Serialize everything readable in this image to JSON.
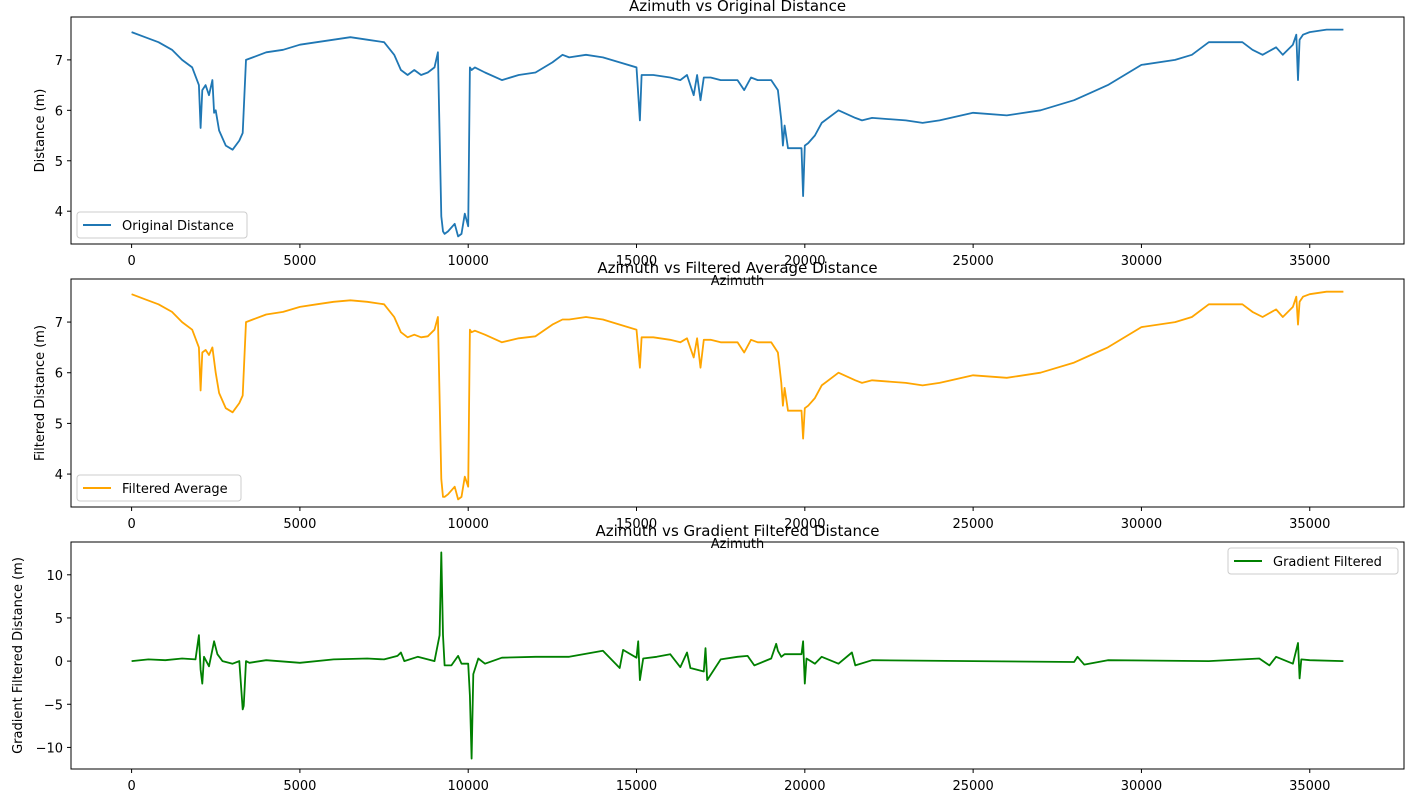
{
  "chart_data": [
    {
      "type": "line",
      "title": "Azimuth vs Original Distance",
      "xlabel": "Azimuth",
      "ylabel": "Distance (m)",
      "xlim": [
        -1800,
        37800
      ],
      "ylim": [
        3.35,
        7.85
      ],
      "xticks": [
        0,
        5000,
        10000,
        15000,
        20000,
        25000,
        30000,
        35000
      ],
      "yticks": [
        4,
        5,
        6,
        7
      ],
      "legend_position": "lower-left",
      "grid": false,
      "series": [
        {
          "name": "Original Distance",
          "color": "#1f77b4",
          "x": [
            0,
            400,
            800,
            1200,
            1500,
            1800,
            2000,
            2050,
            2100,
            2200,
            2300,
            2400,
            2450,
            2500,
            2600,
            2800,
            3000,
            3200,
            3300,
            3350,
            3400,
            3600,
            4000,
            4500,
            5000,
            5500,
            6000,
            6500,
            7000,
            7500,
            7800,
            8000,
            8200,
            8400,
            8600,
            8800,
            9000,
            9100,
            9200,
            9250,
            9300,
            9400,
            9600,
            9700,
            9800,
            9900,
            10000,
            10050,
            10100,
            10200,
            10500,
            11000,
            11500,
            12000,
            12500,
            12800,
            13000,
            13500,
            14000,
            14500,
            15000,
            15100,
            15150,
            15200,
            15500,
            16000,
            16300,
            16500,
            16700,
            16800,
            16900,
            17000,
            17200,
            17500,
            18000,
            18200,
            18400,
            18600,
            19000,
            19200,
            19300,
            19350,
            19400,
            19500,
            19700,
            19900,
            19950,
            20000,
            20100,
            20300,
            20500,
            21000,
            21500,
            21700,
            22000,
            23000,
            23500,
            24000,
            25000,
            26000,
            27000,
            28000,
            28500,
            29000,
            30000,
            31000,
            31500,
            32000,
            33000,
            33300,
            33600,
            34000,
            34200,
            34500,
            34600,
            34650,
            34700,
            34800,
            35000,
            35500,
            36000
          ],
          "y": [
            7.55,
            7.45,
            7.35,
            7.2,
            7.0,
            6.85,
            6.5,
            5.65,
            6.4,
            6.5,
            6.3,
            6.6,
            5.95,
            6.0,
            5.6,
            5.3,
            5.22,
            5.4,
            5.55,
            6.3,
            7.0,
            7.05,
            7.15,
            7.2,
            7.3,
            7.35,
            7.4,
            7.45,
            7.4,
            7.35,
            7.1,
            6.8,
            6.7,
            6.8,
            6.7,
            6.75,
            6.85,
            7.15,
            3.9,
            3.6,
            3.55,
            3.6,
            3.75,
            3.5,
            3.55,
            3.95,
            3.7,
            6.85,
            6.8,
            6.85,
            6.75,
            6.6,
            6.7,
            6.75,
            6.95,
            7.1,
            7.05,
            7.1,
            7.05,
            6.95,
            6.85,
            5.8,
            6.7,
            6.7,
            6.7,
            6.65,
            6.6,
            6.7,
            6.3,
            6.7,
            6.2,
            6.65,
            6.65,
            6.6,
            6.6,
            6.4,
            6.65,
            6.6,
            6.6,
            6.4,
            5.8,
            5.3,
            5.7,
            5.25,
            5.25,
            5.25,
            4.3,
            5.3,
            5.35,
            5.5,
            5.75,
            6.0,
            5.85,
            5.8,
            5.85,
            5.8,
            5.75,
            5.8,
            5.95,
            5.9,
            6.0,
            6.2,
            6.35,
            6.5,
            6.9,
            7.0,
            7.1,
            7.35,
            7.35,
            7.2,
            7.1,
            7.25,
            7.1,
            7.3,
            7.5,
            6.6,
            7.4,
            7.5,
            7.55,
            7.6,
            7.6
          ]
        }
      ]
    },
    {
      "type": "line",
      "title": "Azimuth vs Filtered Average Distance",
      "xlabel": "Azimuth",
      "ylabel": "Filtered Distance (m)",
      "xlim": [
        -1800,
        37800
      ],
      "ylim": [
        3.35,
        7.85
      ],
      "xticks": [
        0,
        5000,
        10000,
        15000,
        20000,
        25000,
        30000,
        35000
      ],
      "yticks": [
        4,
        5,
        6,
        7
      ],
      "legend_position": "lower-left",
      "grid": false,
      "series": [
        {
          "name": "Filtered Average",
          "color": "#ffa500",
          "x": [
            0,
            400,
            800,
            1200,
            1500,
            1800,
            2000,
            2050,
            2100,
            2200,
            2300,
            2400,
            2500,
            2600,
            2800,
            3000,
            3200,
            3300,
            3350,
            3400,
            3600,
            4000,
            4500,
            5000,
            5500,
            6000,
            6500,
            7000,
            7500,
            7800,
            8000,
            8200,
            8400,
            8600,
            8800,
            9000,
            9100,
            9200,
            9250,
            9300,
            9400,
            9600,
            9700,
            9800,
            9900,
            10000,
            10050,
            10100,
            10200,
            10500,
            11000,
            11500,
            12000,
            12500,
            12800,
            13000,
            13500,
            14000,
            14500,
            15000,
            15100,
            15150,
            15200,
            15500,
            16000,
            16300,
            16500,
            16700,
            16800,
            16900,
            17000,
            17200,
            17500,
            18000,
            18200,
            18400,
            18600,
            19000,
            19200,
            19300,
            19350,
            19400,
            19500,
            19700,
            19900,
            19950,
            20000,
            20100,
            20300,
            20500,
            21000,
            21500,
            21700,
            22000,
            23000,
            23500,
            24000,
            25000,
            26000,
            27000,
            28000,
            28500,
            29000,
            30000,
            31000,
            31500,
            32000,
            33000,
            33300,
            33600,
            34000,
            34200,
            34500,
            34600,
            34650,
            34700,
            34800,
            35000,
            35500,
            36000
          ],
          "y": [
            7.55,
            7.45,
            7.35,
            7.2,
            7.0,
            6.85,
            6.5,
            5.65,
            6.4,
            6.45,
            6.35,
            6.5,
            6.0,
            5.6,
            5.3,
            5.22,
            5.4,
            5.55,
            6.3,
            7.0,
            7.05,
            7.15,
            7.2,
            7.3,
            7.35,
            7.4,
            7.43,
            7.4,
            7.35,
            7.1,
            6.8,
            6.7,
            6.75,
            6.7,
            6.72,
            6.85,
            7.1,
            3.9,
            3.55,
            3.55,
            3.6,
            3.75,
            3.5,
            3.55,
            3.95,
            3.75,
            6.85,
            6.8,
            6.83,
            6.75,
            6.6,
            6.68,
            6.72,
            6.95,
            7.05,
            7.05,
            7.1,
            7.05,
            6.95,
            6.85,
            6.1,
            6.7,
            6.7,
            6.7,
            6.65,
            6.6,
            6.68,
            6.3,
            6.68,
            6.1,
            6.65,
            6.65,
            6.6,
            6.6,
            6.4,
            6.65,
            6.6,
            6.6,
            6.4,
            5.8,
            5.35,
            5.7,
            5.25,
            5.25,
            5.25,
            4.7,
            5.3,
            5.35,
            5.5,
            5.75,
            6.0,
            5.85,
            5.8,
            5.85,
            5.8,
            5.75,
            5.8,
            5.95,
            5.9,
            6.0,
            6.2,
            6.35,
            6.5,
            6.9,
            7.0,
            7.1,
            7.35,
            7.35,
            7.2,
            7.1,
            7.25,
            7.1,
            7.3,
            7.5,
            6.95,
            7.4,
            7.5,
            7.55,
            7.6,
            7.6
          ]
        }
      ]
    },
    {
      "type": "line",
      "title": "Azimuth vs Gradient Filtered Distance",
      "xlabel": "",
      "ylabel": "Gradient Filtered Distance (m)",
      "xlim": [
        -1800,
        37800
      ],
      "ylim": [
        -12.5,
        13.8
      ],
      "xticks": [
        0,
        5000,
        10000,
        15000,
        20000,
        25000,
        30000,
        35000
      ],
      "yticks": [
        -10,
        -5,
        0,
        5,
        10
      ],
      "legend_position": "upper-right",
      "grid": false,
      "series": [
        {
          "name": "Gradient Filtered",
          "color": "#008000",
          "x": [
            0,
            500,
            1000,
            1500,
            1900,
            2000,
            2050,
            2100,
            2150,
            2300,
            2450,
            2550,
            2700,
            3000,
            3200,
            3300,
            3330,
            3360,
            3400,
            3500,
            4000,
            5000,
            6000,
            7000,
            7500,
            7900,
            8000,
            8100,
            8500,
            9000,
            9150,
            9200,
            9250,
            9300,
            9500,
            9700,
            9800,
            10000,
            10050,
            10100,
            10150,
            10300,
            10500,
            11000,
            12000,
            13000,
            14000,
            14500,
            14600,
            15000,
            15050,
            15100,
            15200,
            15600,
            16000,
            16300,
            16500,
            16600,
            17000,
            17050,
            17100,
            17500,
            18000,
            18300,
            18500,
            19000,
            19150,
            19200,
            19300,
            19400,
            19900,
            19950,
            20000,
            20050,
            20300,
            20500,
            21000,
            21400,
            21500,
            22000,
            25000,
            28000,
            28100,
            28300,
            29000,
            32000,
            33500,
            33800,
            34000,
            34500,
            34650,
            34700,
            34750,
            35000,
            36000
          ],
          "y": [
            0,
            0.2,
            0.1,
            0.3,
            0.2,
            3.0,
            -1.0,
            -2.6,
            0.5,
            -0.6,
            2.3,
            0.8,
            0,
            -0.3,
            0,
            -5.6,
            -5.2,
            -3.0,
            0,
            -0.2,
            0.1,
            -0.2,
            0.2,
            0.3,
            0.2,
            0.6,
            1.0,
            0,
            0.5,
            0,
            3.0,
            12.6,
            3.0,
            -0.5,
            -0.5,
            0.6,
            -0.3,
            -0.3,
            -4.0,
            -11.3,
            -1.5,
            0.3,
            -0.3,
            0.4,
            0.5,
            0.5,
            1.2,
            -0.8,
            1.3,
            0.4,
            2.3,
            -2.2,
            0.3,
            0.5,
            0.8,
            -0.7,
            1.0,
            -0.8,
            -1.2,
            1.5,
            -2.2,
            0.2,
            0.5,
            0.6,
            -0.5,
            0.3,
            2.0,
            1.2,
            0.5,
            0.8,
            0.8,
            2.3,
            -2.6,
            0.3,
            -0.3,
            0.5,
            -0.3,
            1.0,
            -0.5,
            0.1,
            0,
            -0.1,
            0.5,
            -0.4,
            0.1,
            0,
            0.3,
            -0.5,
            0.5,
            -0.3,
            2.1,
            -2.0,
            0.2,
            0.1,
            0
          ]
        }
      ]
    }
  ]
}
